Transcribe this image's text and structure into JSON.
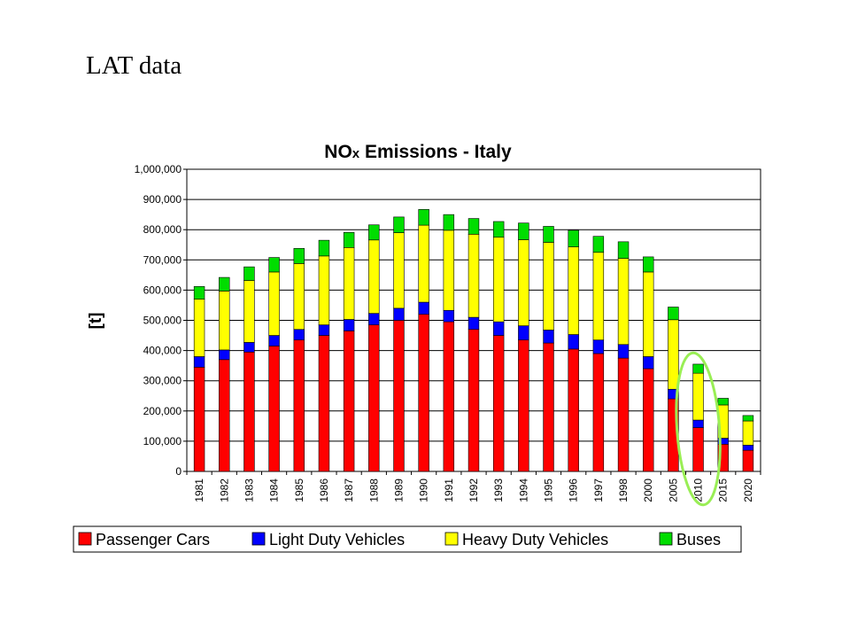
{
  "slide": {
    "title": "LAT data"
  },
  "chart_data": {
    "type": "bar",
    "stacked": true,
    "title_parts": [
      "NO",
      "x",
      " Emissions - Italy"
    ],
    "ylabel": "[t]",
    "xlabel": "",
    "ylim": [
      0,
      1000000
    ],
    "yticks": [
      "0",
      "100,000",
      "200,000",
      "300,000",
      "400,000",
      "500,000",
      "600,000",
      "700,000",
      "800,000",
      "900,000",
      "1,000,000"
    ],
    "grid": true,
    "legend_position": "bottom",
    "categories": [
      "1981",
      "1982",
      "1983",
      "1984",
      "1985",
      "1986",
      "1987",
      "1988",
      "1989",
      "1990",
      "1991",
      "1992",
      "1993",
      "1994",
      "1995",
      "1996",
      "1997",
      "1998",
      "2000",
      "2005",
      "2010",
      "2015",
      "2020"
    ],
    "series": [
      {
        "name": "Passenger Cars",
        "color": "#ff0000",
        "values": [
          345000,
          370000,
          395000,
          415000,
          435000,
          450000,
          465000,
          485000,
          500000,
          520000,
          495000,
          470000,
          450000,
          435000,
          425000,
          405000,
          390000,
          375000,
          340000,
          240000,
          145000,
          90000,
          70000
        ]
      },
      {
        "name": "Light Duty Vehicles",
        "color": "#0000ff",
        "values": [
          35000,
          32000,
          32000,
          35000,
          35000,
          35000,
          38000,
          38000,
          40000,
          40000,
          38000,
          40000,
          45000,
          47000,
          43000,
          48000,
          45000,
          45000,
          40000,
          32000,
          25000,
          20000,
          17000
        ]
      },
      {
        "name": "Heavy Duty Vehicles",
        "color": "#ffff00",
        "values": [
          190000,
          195000,
          205000,
          210000,
          218000,
          228000,
          238000,
          243000,
          250000,
          255000,
          265000,
          275000,
          280000,
          285000,
          290000,
          290000,
          290000,
          285000,
          280000,
          230000,
          155000,
          110000,
          80000
        ]
      },
      {
        "name": "Buses",
        "color": "#00dd00",
        "values": [
          42000,
          45000,
          45000,
          48000,
          50000,
          52000,
          50000,
          50000,
          52000,
          52000,
          52000,
          52000,
          52000,
          55000,
          53000,
          55000,
          53000,
          55000,
          50000,
          42000,
          30000,
          22000,
          18000
        ]
      }
    ],
    "highlight": {
      "category": "2010",
      "color": "#99ee55",
      "shape": "ellipse"
    }
  }
}
